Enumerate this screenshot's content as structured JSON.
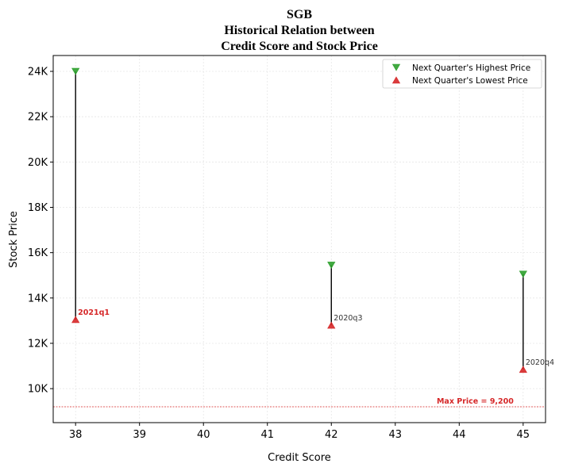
{
  "chart_data": {
    "type": "scatter",
    "title_lines": [
      "SGB",
      "Historical Relation between",
      "Credit Score and Stock Price"
    ],
    "xlabel": "Credit Score",
    "ylabel": "Stock Price",
    "xlim": [
      37.65,
      45.35
    ],
    "ylim": [
      8500,
      24700
    ],
    "x_ticks": [
      38,
      39,
      40,
      41,
      42,
      43,
      44,
      45
    ],
    "y_ticks": [
      10000,
      12000,
      14000,
      16000,
      18000,
      20000,
      22000,
      24000
    ],
    "y_tick_labels": [
      "10K",
      "12K",
      "14K",
      "16K",
      "18K",
      "20K",
      "22K",
      "24K"
    ],
    "grid": true,
    "legend_position": "top-right",
    "series": [
      {
        "name": "Next Quarter's Highest Price",
        "marker": "triangle-down",
        "color": "#2ca02c",
        "points": [
          {
            "x": 38,
            "y": 24000
          },
          {
            "x": 42,
            "y": 15450
          },
          {
            "x": 45,
            "y": 15050
          }
        ]
      },
      {
        "name": "Next Quarter's Lowest Price",
        "marker": "triangle-up",
        "color": "#d62728",
        "points": [
          {
            "x": 38,
            "y": 13050
          },
          {
            "x": 42,
            "y": 12800
          },
          {
            "x": 45,
            "y": 10850
          }
        ]
      }
    ],
    "point_labels": [
      {
        "x": 38,
        "y": 13050,
        "text": "2021q1",
        "highlight": true
      },
      {
        "x": 42,
        "y": 12800,
        "text": "2020q3",
        "highlight": false
      },
      {
        "x": 45,
        "y": 10850,
        "text": "2020q4",
        "highlight": false
      }
    ],
    "reference_line": {
      "y": 9200,
      "label": "Max Price = 9,200",
      "color": "#d62728"
    }
  }
}
